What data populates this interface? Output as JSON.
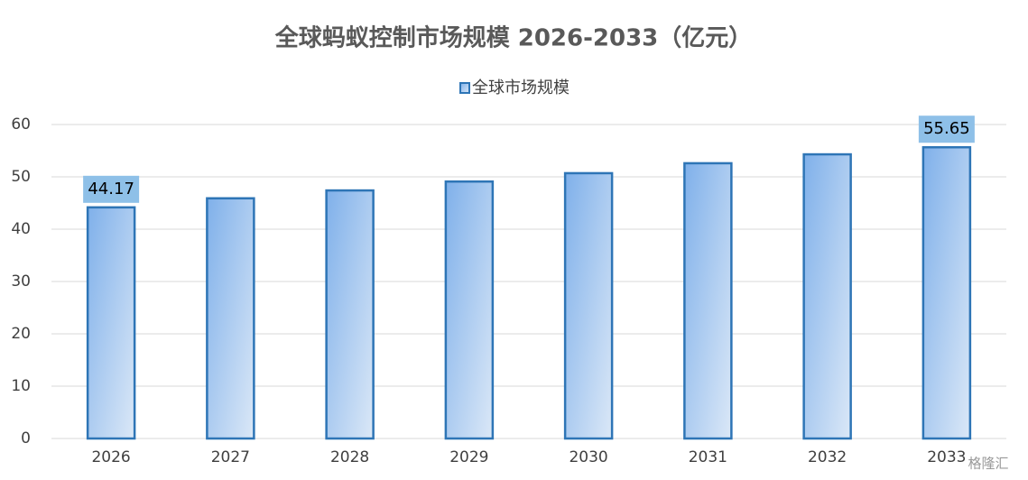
{
  "chart_data": {
    "type": "bar",
    "title": "全球蚂蚁控制市场规模 2026-2033（亿元）",
    "categories": [
      "2026",
      "2027",
      "2028",
      "2029",
      "2030",
      "2031",
      "2032",
      "2033"
    ],
    "series": [
      {
        "name": "全球市场规模",
        "color": "#2e75b6",
        "values": [
          44.17,
          45.9,
          47.4,
          49.1,
          50.7,
          52.6,
          54.3,
          55.65
        ],
        "value_labels": [
          "44.17",
          null,
          null,
          null,
          null,
          null,
          null,
          "55.65"
        ]
      }
    ],
    "ylim": [
      0,
      60
    ],
    "yticks": [
      0,
      10,
      20,
      30,
      40,
      50,
      60
    ],
    "grid": true,
    "legend": "top",
    "watermark": "格隆汇"
  }
}
